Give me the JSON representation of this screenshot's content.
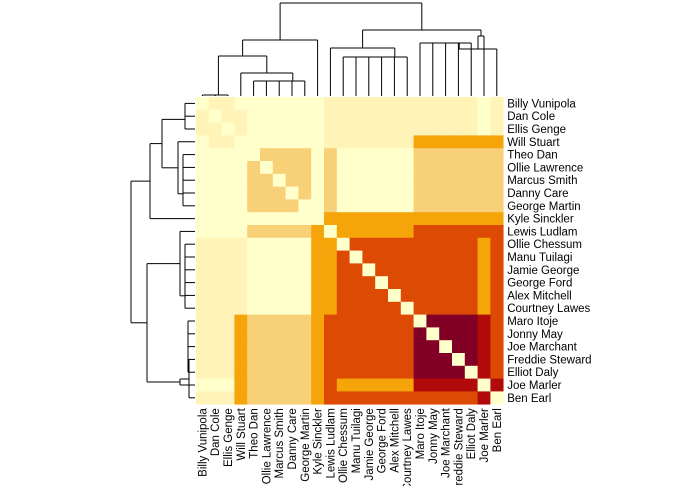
{
  "chart_data": {
    "type": "heatmap",
    "title": "",
    "labels": [
      "Billy Vunipola",
      "Dan Cole",
      "Ellis Genge",
      "Will Stuart",
      "Theo Dan",
      "Ollie Lawrence",
      "Marcus Smith",
      "Danny Care",
      "George Martin",
      "Kyle Sinckler",
      "Lewis Ludlam",
      "Ollie Chessum",
      "Manu Tuilagi",
      "Jamie George",
      "George Ford",
      "Alex Mitchell",
      "Courtney Lawes",
      "Maro Itoje",
      "Jonny May",
      "Joe Marchant",
      "Freddie Steward",
      "Elliot Daly",
      "Joe Marler",
      "Ben Earl"
    ],
    "legend": "none",
    "colors": {
      "0": "#ffffcc",
      "1": "#fff3b8",
      "2": "#f8d078",
      "3": "#f5a40a",
      "4": "#dd4a04",
      "5": "#b00a0a",
      "6": "#820026"
    },
    "row_dendrogram": "left",
    "column_dendrogram": "top",
    "values": [
      [
        0,
        1,
        1,
        0,
        0,
        0,
        0,
        0,
        0,
        0,
        1,
        1,
        1,
        1,
        1,
        1,
        1,
        1,
        1,
        1,
        1,
        1,
        0,
        1
      ],
      [
        1,
        0,
        1,
        1,
        0,
        0,
        0,
        0,
        0,
        0,
        1,
        1,
        1,
        1,
        1,
        1,
        1,
        1,
        1,
        1,
        1,
        1,
        0,
        1
      ],
      [
        1,
        1,
        0,
        1,
        0,
        0,
        0,
        0,
        0,
        0,
        1,
        1,
        1,
        1,
        1,
        1,
        1,
        1,
        1,
        1,
        1,
        1,
        0,
        1
      ],
      [
        0,
        1,
        1,
        0,
        0,
        0,
        0,
        0,
        0,
        0,
        1,
        1,
        1,
        1,
        1,
        1,
        1,
        3,
        3,
        3,
        3,
        3,
        3,
        3
      ],
      [
        0,
        0,
        0,
        0,
        0,
        2,
        2,
        2,
        2,
        0,
        2,
        0,
        0,
        0,
        0,
        0,
        0,
        2,
        2,
        2,
        2,
        2,
        2,
        2
      ],
      [
        0,
        0,
        0,
        0,
        2,
        0,
        2,
        2,
        2,
        0,
        2,
        0,
        0,
        0,
        0,
        0,
        0,
        2,
        2,
        2,
        2,
        2,
        2,
        2
      ],
      [
        0,
        0,
        0,
        0,
        2,
        2,
        0,
        2,
        2,
        0,
        2,
        0,
        0,
        0,
        0,
        0,
        0,
        2,
        2,
        2,
        2,
        2,
        2,
        2
      ],
      [
        0,
        0,
        0,
        0,
        2,
        2,
        2,
        0,
        2,
        0,
        2,
        0,
        0,
        0,
        0,
        0,
        0,
        2,
        2,
        2,
        2,
        2,
        2,
        2
      ],
      [
        0,
        0,
        0,
        0,
        2,
        2,
        2,
        2,
        0,
        0,
        2,
        0,
        0,
        0,
        0,
        0,
        0,
        2,
        2,
        2,
        2,
        2,
        2,
        2
      ],
      [
        0,
        0,
        0,
        0,
        0,
        0,
        0,
        0,
        0,
        0,
        3,
        3,
        3,
        3,
        3,
        3,
        3,
        3,
        3,
        3,
        3,
        3,
        3,
        3
      ],
      [
        0,
        0,
        0,
        0,
        2,
        2,
        2,
        2,
        2,
        3,
        0,
        3,
        3,
        3,
        3,
        3,
        3,
        4,
        4,
        4,
        4,
        4,
        4,
        4
      ],
      [
        1,
        1,
        1,
        1,
        0,
        0,
        0,
        0,
        0,
        3,
        3,
        0,
        4,
        4,
        4,
        4,
        4,
        4,
        4,
        4,
        4,
        4,
        3,
        4
      ],
      [
        1,
        1,
        1,
        1,
        0,
        0,
        0,
        0,
        0,
        3,
        3,
        4,
        0,
        4,
        4,
        4,
        4,
        4,
        4,
        4,
        4,
        4,
        3,
        4
      ],
      [
        1,
        1,
        1,
        1,
        0,
        0,
        0,
        0,
        0,
        3,
        3,
        4,
        4,
        0,
        4,
        4,
        4,
        4,
        4,
        4,
        4,
        4,
        3,
        4
      ],
      [
        1,
        1,
        1,
        1,
        0,
        0,
        0,
        0,
        0,
        3,
        3,
        4,
        4,
        4,
        0,
        4,
        4,
        4,
        4,
        4,
        4,
        4,
        3,
        4
      ],
      [
        1,
        1,
        1,
        1,
        0,
        0,
        0,
        0,
        0,
        3,
        3,
        4,
        4,
        4,
        4,
        0,
        4,
        4,
        4,
        4,
        4,
        4,
        3,
        4
      ],
      [
        1,
        1,
        1,
        1,
        0,
        0,
        0,
        0,
        0,
        3,
        3,
        4,
        4,
        4,
        4,
        4,
        0,
        4,
        4,
        4,
        4,
        4,
        3,
        4
      ],
      [
        1,
        1,
        1,
        3,
        2,
        2,
        2,
        2,
        2,
        3,
        4,
        4,
        4,
        4,
        4,
        4,
        4,
        0,
        6,
        6,
        6,
        6,
        5,
        4
      ],
      [
        1,
        1,
        1,
        3,
        2,
        2,
        2,
        2,
        2,
        3,
        4,
        4,
        4,
        4,
        4,
        4,
        4,
        6,
        0,
        6,
        6,
        6,
        5,
        4
      ],
      [
        1,
        1,
        1,
        3,
        2,
        2,
        2,
        2,
        2,
        3,
        4,
        4,
        4,
        4,
        4,
        4,
        4,
        6,
        6,
        0,
        6,
        6,
        5,
        4
      ],
      [
        1,
        1,
        1,
        3,
        2,
        2,
        2,
        2,
        2,
        3,
        4,
        4,
        4,
        4,
        4,
        4,
        4,
        6,
        6,
        6,
        0,
        6,
        5,
        4
      ],
      [
        1,
        1,
        1,
        3,
        2,
        2,
        2,
        2,
        2,
        3,
        4,
        4,
        4,
        4,
        4,
        4,
        4,
        6,
        6,
        6,
        6,
        0,
        5,
        4
      ],
      [
        0,
        0,
        0,
        3,
        2,
        2,
        2,
        2,
        2,
        3,
        4,
        3,
        3,
        3,
        3,
        3,
        3,
        5,
        5,
        5,
        5,
        5,
        0,
        5
      ],
      [
        1,
        1,
        1,
        3,
        2,
        2,
        2,
        2,
        2,
        3,
        4,
        4,
        4,
        4,
        4,
        4,
        4,
        4,
        4,
        4,
        4,
        4,
        5,
        0
      ]
    ]
  }
}
